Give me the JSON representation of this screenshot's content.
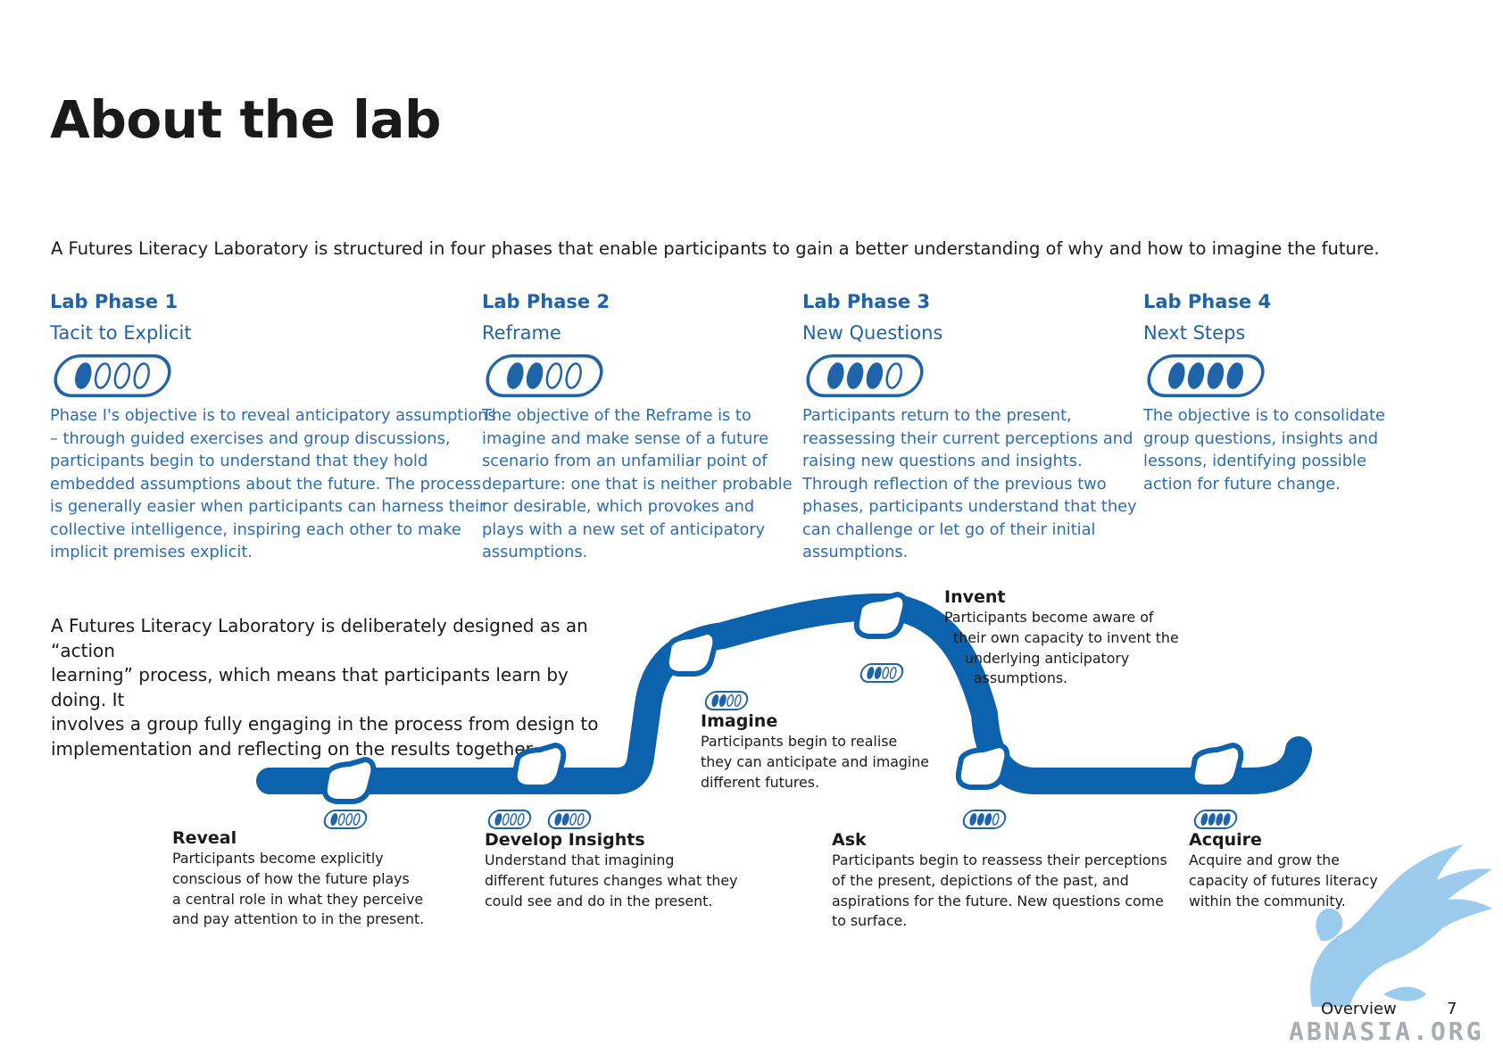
{
  "title": "About the lab",
  "intro": "A Futures Literacy Laboratory is structured in four phases that enable participants to gain a better understanding of why and how to imagine the future.",
  "phases": [
    {
      "title": "Lab Phase 1",
      "subtitle": "Tacit to Explicit",
      "filled": 1,
      "lines": [
        "Phase I's objective is to reveal anticipatory assumptions",
        "– through guided exercises and group discussions,",
        "participants begin to understand that they hold",
        "embedded assumptions about the future. The process",
        "is generally easier when participants can harness their",
        "collective intelligence, inspiring each other to make",
        "implicit premises explicit."
      ]
    },
    {
      "title": "Lab Phase 2",
      "subtitle": "Reframe",
      "filled": 2,
      "lines": [
        "The objective of the Reframe is to",
        "imagine and make sense of a future",
        "scenario from an unfamiliar point of",
        "departure: one that is neither probable",
        "nor desirable, which provokes and",
        "plays with a new set of anticipatory",
        "assumptions."
      ]
    },
    {
      "title": "Lab Phase 3",
      "subtitle": "New Questions",
      "filled": 3,
      "lines": [
        "Participants return to the present,",
        "reassessing their current perceptions and",
        "raising new questions and insights.",
        "Through reflection of the previous two",
        "phases, participants understand that they",
        "can challenge or let go of their initial",
        "assumptions."
      ]
    },
    {
      "title": "Lab Phase 4",
      "subtitle": "Next Steps",
      "filled": 4,
      "lines": [
        "The objective is to consolidate",
        "group questions, insights and",
        "lessons, identifying possible",
        "action for future change."
      ]
    }
  ],
  "action_lines": [
    "A Futures Literacy Laboratory is deliberately designed as an “action",
    "learning” process, which means that participants learn by doing. It",
    "involves a group fully engaging in the process from design to",
    "implementation and reflecting on the results together."
  ],
  "stages": [
    {
      "title": "Reveal",
      "lines": [
        "Participants become explicitly",
        "conscious of how the future plays",
        "a central role in what they perceive",
        "and pay attention to in the present."
      ],
      "pills": [
        1
      ]
    },
    {
      "title": "Develop Insights",
      "lines": [
        "Understand that imagining",
        "different futures changes what they",
        "could see and do in the present."
      ],
      "pills": [
        1,
        2
      ]
    },
    {
      "title": "Imagine",
      "lines": [
        "Participants begin to realise",
        "they can anticipate and imagine",
        "different futures."
      ],
      "pills": [
        2
      ]
    },
    {
      "title": "Invent",
      "lines": [
        "Participants become aware of",
        "their own capacity to invent the",
        "underlying anticipatory",
        "assumptions."
      ],
      "pills": [
        2
      ]
    },
    {
      "title": "Ask",
      "lines": [
        "Participants begin to reassess their perceptions",
        "of the present, depictions of the past, and",
        "aspirations for the future. New questions come",
        "to surface."
      ],
      "pills": [
        3
      ]
    },
    {
      "title": "Acquire",
      "lines": [
        "Acquire and grow the",
        "capacity of futures literacy",
        "within the community."
      ],
      "pills": [
        4
      ]
    }
  ],
  "footer": {
    "label": "Overview",
    "page": "7"
  },
  "watermark": "ABNASIA.ORG",
  "colors": {
    "accent": "#1f63a8",
    "path": "#0d62ad",
    "watermark": "#8ec4ea"
  }
}
